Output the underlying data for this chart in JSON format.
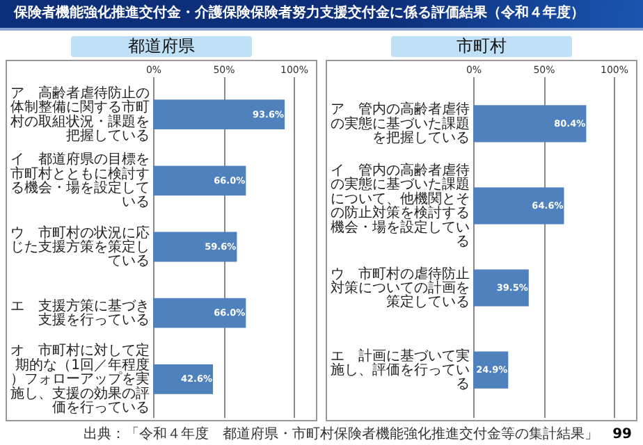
{
  "chart_data": [
    {
      "type": "other",
      "title": "保険者機能強化推進交付金・介護保険保険者努力支援交付金に係る評価結果（令和４年度）",
      "annotations": [
        "出典：「令和４年度　都道府県・市町村保険者機能強化推進交付金等の集計結果」",
        "99"
      ]
    },
    {
      "type": "bar",
      "orientation": "horizontal",
      "title": "都道府県",
      "categories": [
        "ア　高齢者虐待防止の体制整備に関する市町村の取組状況・課題を把握している",
        "イ　都道府県の目標を市町村とともに検討する機会・場を設定している",
        "ウ　市町村の状況に応じた支援方策を策定している",
        "エ　支援方策に基づき支援を行っている",
        "オ　市町村に対して定期的な（1回／年程度）フォローアップを実施し、支援の効果の評価を行っている"
      ],
      "values": [
        93.6,
        66.0,
        59.6,
        66.0,
        42.6
      ],
      "value_labels": [
        "93.6%",
        "66.0%",
        "59.6%",
        "66.0%",
        "42.6%"
      ],
      "color": "#4f81bd",
      "xlim": [
        0,
        100
      ],
      "xticks": [
        {
          "value": 0,
          "label": "0%"
        },
        {
          "value": 50,
          "label": "50%"
        },
        {
          "value": 100,
          "label": "100%"
        }
      ],
      "grid": "x"
    },
    {
      "type": "bar",
      "orientation": "horizontal",
      "title": "市町村",
      "categories": [
        "ア　管内の高齢者虐待の実態に基づいた課題を把握している",
        "イ　管内の高齢者虐待の実態に基づいた課題について、他機関とその防止対策を検討する機会・場を設定している",
        "ウ　市町村の虐待防止対策についての計画を策定している",
        "エ　計画に基づいて実施し、評価を行っている"
      ],
      "values": [
        80.4,
        64.6,
        39.5,
        24.9
      ],
      "value_labels": [
        "80.4%",
        "64.6%",
        "39.5%",
        "24.9%"
      ],
      "color": "#4f81bd",
      "xlim": [
        0,
        100
      ],
      "xticks": [
        {
          "value": 0,
          "label": "0%"
        },
        {
          "value": 50,
          "label": "50%"
        },
        {
          "value": 100,
          "label": "100%"
        }
      ],
      "grid": "x"
    }
  ]
}
